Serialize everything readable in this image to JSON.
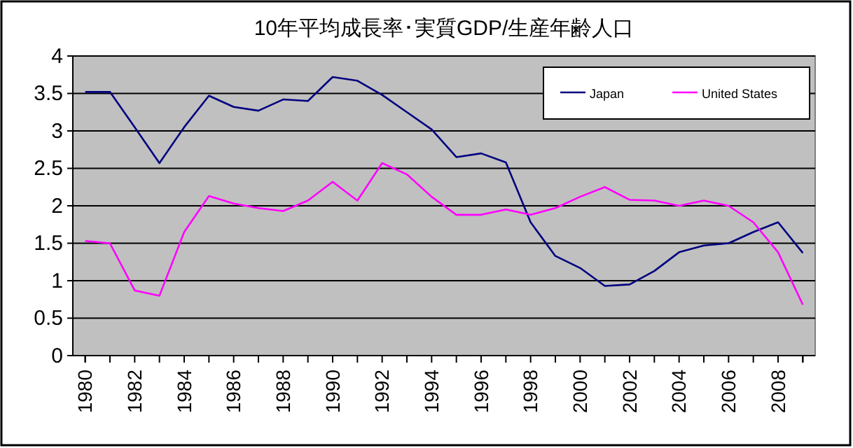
{
  "chart_data": {
    "type": "line",
    "title": "10年平均成長率･実質GDP/生産年齢人口",
    "categories": [
      "1980",
      null,
      "1982",
      null,
      "1984",
      null,
      "1986",
      null,
      "1988",
      null,
      "1990",
      null,
      "1992",
      null,
      "1994",
      null,
      "1996",
      null,
      "1998",
      null,
      "2000",
      null,
      "2002",
      null,
      "2004",
      null,
      "2006",
      null,
      "2008",
      null
    ],
    "series": [
      {
        "name": "Japan",
        "color": "#000080",
        "values": [
          3.52,
          3.52,
          3.05,
          2.57,
          3.05,
          3.47,
          3.32,
          3.27,
          3.42,
          3.4,
          3.72,
          3.67,
          3.48,
          3.25,
          3.02,
          2.65,
          2.7,
          2.58,
          1.78,
          1.33,
          1.17,
          0.93,
          0.95,
          1.13,
          1.38,
          1.47,
          1.5,
          1.65,
          1.78,
          1.37
        ]
      },
      {
        "name": "United States",
        "color": "#ff00ff",
        "values": [
          1.53,
          1.5,
          0.87,
          0.8,
          1.65,
          2.13,
          2.03,
          1.97,
          1.93,
          2.07,
          2.32,
          2.07,
          2.57,
          2.42,
          2.12,
          1.88,
          1.88,
          1.95,
          1.88,
          1.97,
          2.12,
          2.25,
          2.08,
          2.07,
          2.0,
          2.07,
          2.0,
          1.78,
          1.38,
          0.68
        ]
      }
    ],
    "ylim": [
      0,
      4
    ],
    "yticks": [
      0,
      0.5,
      1,
      1.5,
      2,
      2.5,
      3,
      3.5,
      4
    ],
    "grid": "y",
    "legend": "top right",
    "marker": "none",
    "line_style": "solid"
  }
}
